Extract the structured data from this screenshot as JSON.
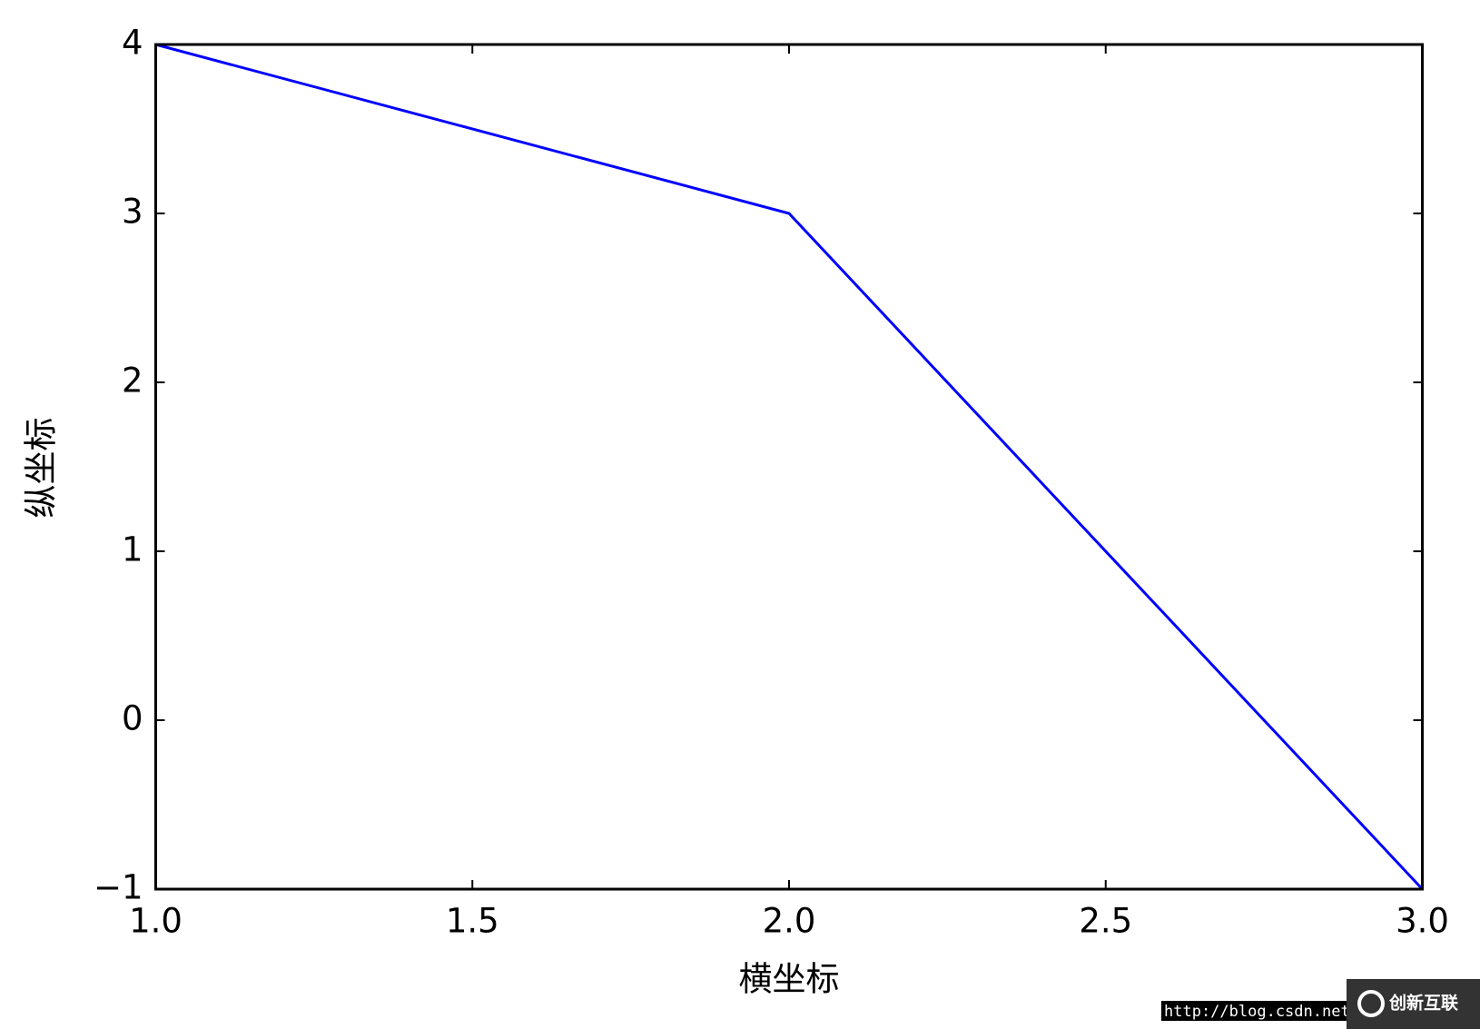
{
  "chart_data": {
    "type": "line",
    "x": [
      1,
      2,
      3
    ],
    "series": [
      {
        "name": null,
        "color": "#0000ff",
        "values": [
          4,
          3,
          -1
        ]
      }
    ],
    "xlim": [
      1,
      3
    ],
    "xticks": [
      {
        "value": 1,
        "label": "1.0"
      },
      {
        "value": 1.5,
        "label": "1.5"
      },
      {
        "value": 2,
        "label": "2.0"
      },
      {
        "value": 2.5,
        "label": "2.5"
      },
      {
        "value": 3,
        "label": "3.0"
      }
    ],
    "ylim": [
      -1,
      4
    ],
    "yticks": [
      {
        "value": -1,
        "label": "−1"
      },
      0,
      1,
      2,
      3,
      4
    ],
    "xlabel": "横坐标",
    "ylabel": "纵坐标",
    "grid": false
  },
  "watermark": {
    "url": "http://blog.csdn.net/",
    "logo": "创新互联"
  }
}
